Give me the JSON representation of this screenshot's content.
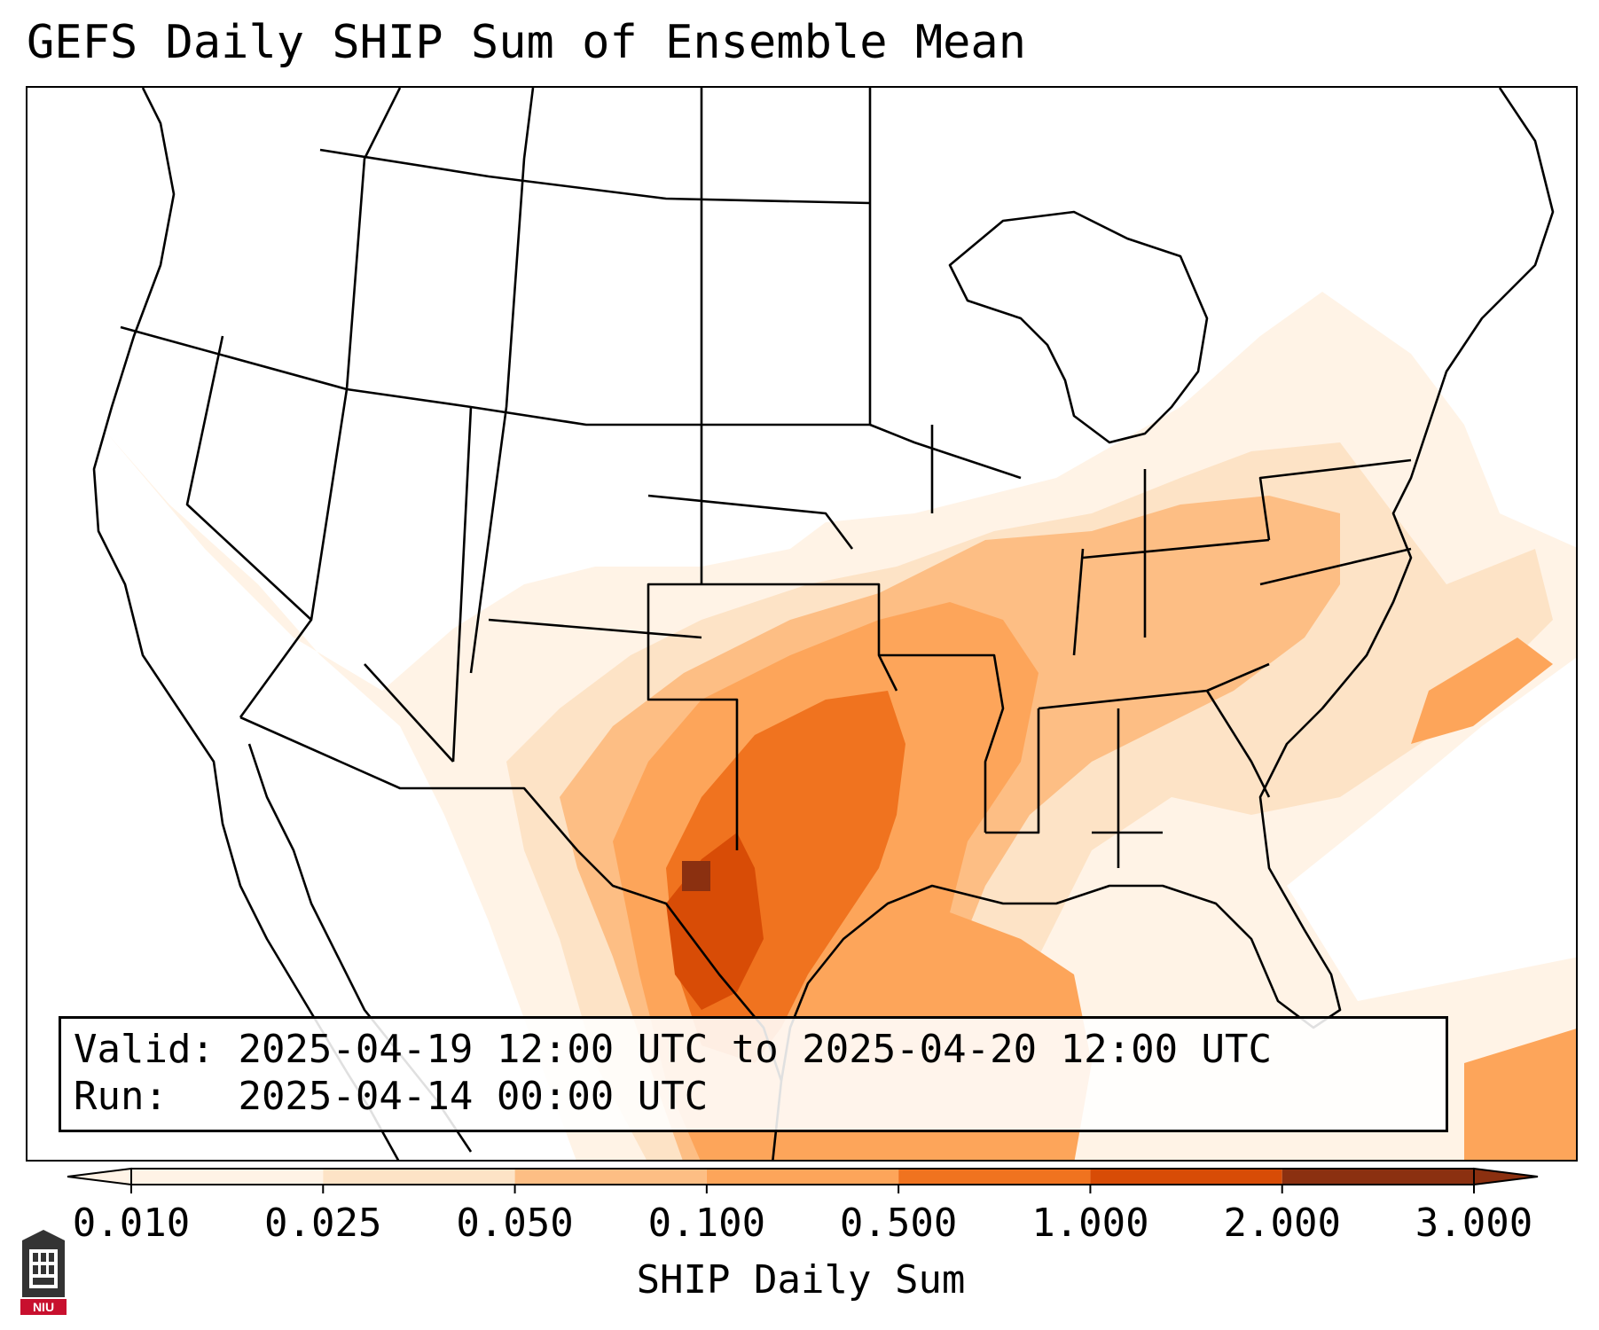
{
  "title": "GEFS Daily SHIP Sum of Ensemble Mean",
  "info": {
    "valid_label": "Valid:",
    "valid_value": "2025-04-19 12:00 UTC to 2025-04-20 12:00 UTC",
    "run_label": "Run:",
    "run_value": "2025-04-14 00:00 UTC"
  },
  "colorbar": {
    "label": "SHIP Daily Sum",
    "ticks": [
      "0.010",
      "0.025",
      "0.050",
      "0.100",
      "0.500",
      "1.000",
      "2.000",
      "3.000"
    ],
    "colors": [
      "#fff3e6",
      "#fde3c6",
      "#fdbe84",
      "#fda55a",
      "#f0731f",
      "#d84c06",
      "#8b3010"
    ],
    "extend": "both"
  },
  "logo": {
    "text": "NIU",
    "color": "#c8102e"
  },
  "colors": {
    "frame": "#000000",
    "background": "#ffffff"
  }
}
